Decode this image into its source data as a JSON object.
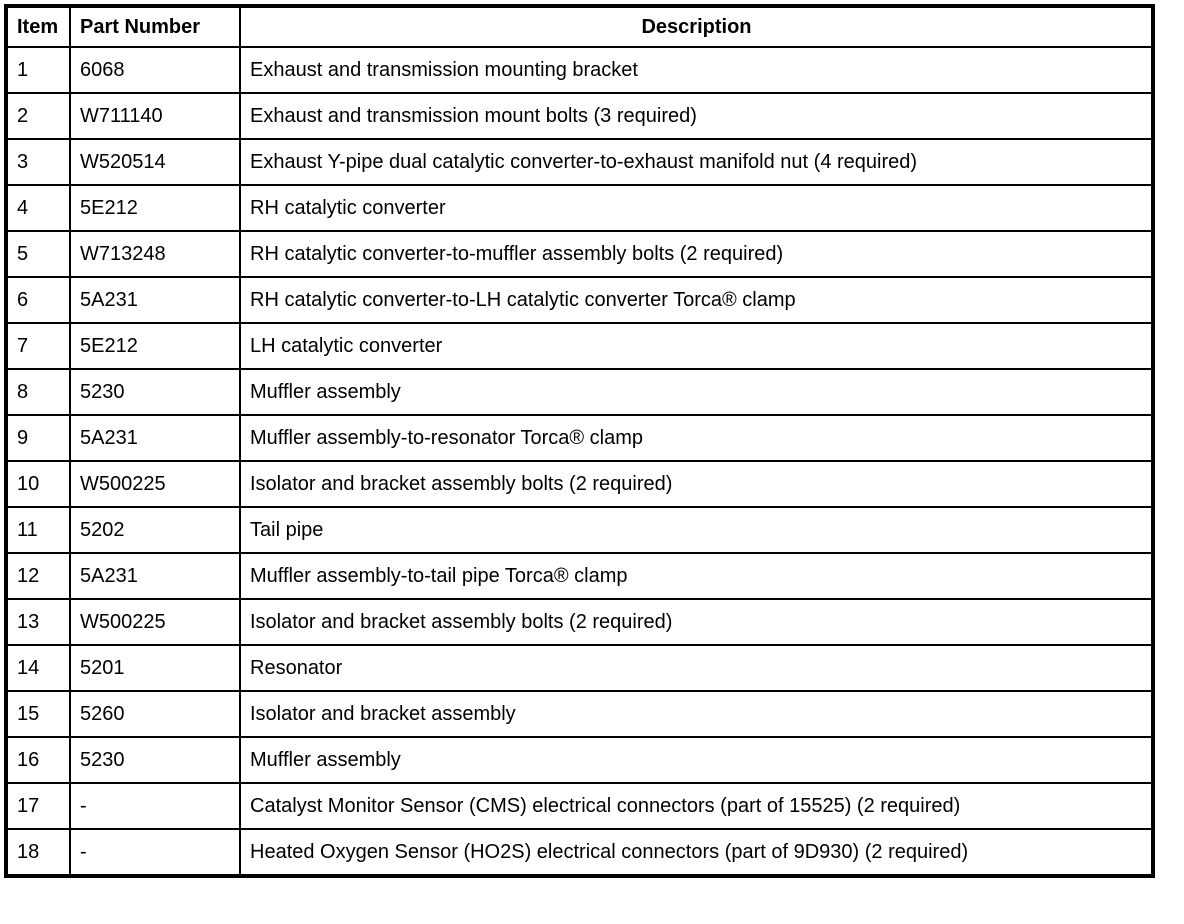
{
  "table": {
    "columns": {
      "item": "Item",
      "part_number": "Part Number",
      "description": "Description"
    },
    "rows": [
      {
        "item": "1",
        "part_number": "6068",
        "description": "Exhaust and transmission mounting bracket"
      },
      {
        "item": "2",
        "part_number": "W711140",
        "description": "Exhaust and transmission mount bolts (3 required)"
      },
      {
        "item": "3",
        "part_number": "W520514",
        "description": "Exhaust Y-pipe dual catalytic converter-to-exhaust manifold nut (4 required)"
      },
      {
        "item": "4",
        "part_number": "5E212",
        "description": "RH catalytic converter"
      },
      {
        "item": "5",
        "part_number": "W713248",
        "description": "RH catalytic converter-to-muffler assembly bolts (2 required)"
      },
      {
        "item": "6",
        "part_number": "5A231",
        "description": "RH catalytic converter-to-LH catalytic converter Torca® clamp"
      },
      {
        "item": "7",
        "part_number": "5E212",
        "description": "LH catalytic converter"
      },
      {
        "item": "8",
        "part_number": "5230",
        "description": "Muffler assembly"
      },
      {
        "item": "9",
        "part_number": "5A231",
        "description": "Muffler assembly-to-resonator Torca® clamp"
      },
      {
        "item": "10",
        "part_number": "W500225",
        "description": "Isolator and bracket assembly bolts (2 required)"
      },
      {
        "item": "11",
        "part_number": "5202",
        "description": "Tail pipe"
      },
      {
        "item": "12",
        "part_number": "5A231",
        "description": "Muffler assembly-to-tail pipe Torca® clamp"
      },
      {
        "item": "13",
        "part_number": "W500225",
        "description": "Isolator and bracket assembly bolts (2 required)"
      },
      {
        "item": "14",
        "part_number": "5201",
        "description": "Resonator"
      },
      {
        "item": "15",
        "part_number": "5260",
        "description": "Isolator and bracket assembly"
      },
      {
        "item": "16",
        "part_number": "5230",
        "description": "Muffler assembly"
      },
      {
        "item": "17",
        "part_number": "-",
        "description": "Catalyst Monitor Sensor (CMS) electrical connectors (part of 15525) (2 required)"
      },
      {
        "item": "18",
        "part_number": "-",
        "description": "Heated Oxygen Sensor (HO2S) electrical connectors (part of 9D930) (2 required)"
      }
    ]
  },
  "colors": {
    "border": "#000000",
    "text": "#000000",
    "background": "#ffffff"
  }
}
